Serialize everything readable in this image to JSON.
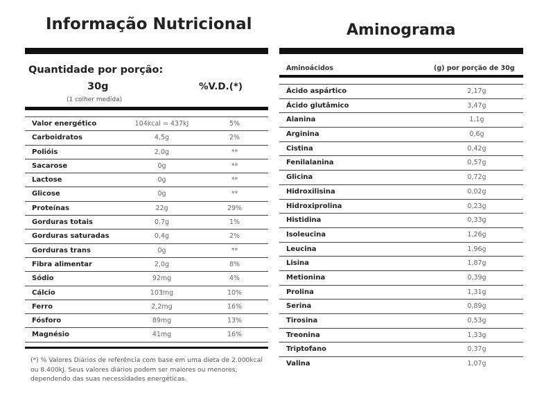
{
  "left": {
    "title": "Informação Nutricional",
    "portion_heading": "Quantidade por porção:",
    "portion_value": "30g",
    "portion_sub": "(1 colher medida)",
    "vd_heading": "%V.D.(*)",
    "rows": [
      {
        "name": "Valor energético",
        "amount": "104kcal = 437kJ",
        "vd": "5%"
      },
      {
        "name": "Carboidratos",
        "amount": "4,5g",
        "vd": "2%"
      },
      {
        "name": "Polióis",
        "amount": "2,0g",
        "vd": "**"
      },
      {
        "name": "Sacarose",
        "amount": "0g",
        "vd": "**"
      },
      {
        "name": "Lactose",
        "amount": "0g",
        "vd": "**"
      },
      {
        "name": "Glicose",
        "amount": "0g",
        "vd": "**"
      },
      {
        "name": "Proteínas",
        "amount": "22g",
        "vd": "29%"
      },
      {
        "name": "Gorduras totais",
        "amount": "0,7g",
        "vd": "1%"
      },
      {
        "name": "Gorduras saturadas",
        "amount": "0,4g",
        "vd": "2%"
      },
      {
        "name": "Gorduras trans",
        "amount": "0g",
        "vd": "**"
      },
      {
        "name": "Fibra alimentar",
        "amount": "2,0g",
        "vd": "8%"
      },
      {
        "name": "Sódio",
        "amount": "92mg",
        "vd": "4%"
      },
      {
        "name": "Cálcio",
        "amount": "103mg",
        "vd": "10%"
      },
      {
        "name": "Ferro",
        "amount": "2,2mg",
        "vd": "16%"
      },
      {
        "name": "Fósforo",
        "amount": "89mg",
        "vd": "13%"
      },
      {
        "name": "Magnésio",
        "amount": "41mg",
        "vd": "16%"
      }
    ],
    "footnote": "(*) % Valores Diários de referência com base em uma dieta de 2.000kcal ou 8.400kJ. Seus valores diários podem ser maiores ou menores, dependendo das suas necessidades energéticas."
  },
  "right": {
    "title": "Aminograma",
    "col_name": "Aminoácidos",
    "col_qty": "(g) por porção de 30g",
    "rows": [
      {
        "name": "Ácido aspártico",
        "qty": "2,17g"
      },
      {
        "name": "Ácido glutâmico",
        "qty": "3,47g"
      },
      {
        "name": "Alanina",
        "qty": "1,1g"
      },
      {
        "name": "Arginina",
        "qty": "0,6g"
      },
      {
        "name": "Cistina",
        "qty": "0,42g"
      },
      {
        "name": "Fenilalanina",
        "qty": "0,57g"
      },
      {
        "name": "Glicina",
        "qty": "0,72g"
      },
      {
        "name": "Hidroxilisina",
        "qty": "0,02g"
      },
      {
        "name": "Hidroxiprolina",
        "qty": "0,23g"
      },
      {
        "name": "Histidina",
        "qty": "0,33g"
      },
      {
        "name": "Isoleucina",
        "qty": "1,26g"
      },
      {
        "name": "Leucina",
        "qty": "1,96g"
      },
      {
        "name": "Lisina",
        "qty": "1,87g"
      },
      {
        "name": "Metionina",
        "qty": "0,39g"
      },
      {
        "name": "Prolina",
        "qty": "1,31g"
      },
      {
        "name": "Serina",
        "qty": "0,89g"
      },
      {
        "name": "Tirosina",
        "qty": "0,53g"
      },
      {
        "name": "Treonina",
        "qty": "1,33g"
      },
      {
        "name": "Triptofano",
        "qty": "0,37g"
      },
      {
        "name": "Valina",
        "qty": "1,07g"
      }
    ]
  }
}
